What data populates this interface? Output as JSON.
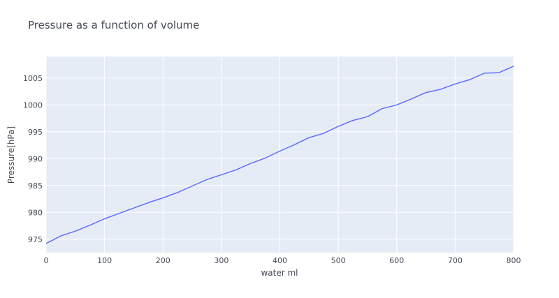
{
  "chart_data": {
    "type": "line",
    "title": "Pressure as a function of volume",
    "xlabel": "water ml",
    "ylabel": "Pressure[hPa]",
    "xlim": [
      0,
      800
    ],
    "ylim": [
      972.5,
      1009
    ],
    "grid": true,
    "x_ticks": [
      0,
      100,
      200,
      300,
      400,
      500,
      600,
      700,
      800
    ],
    "y_ticks": [
      975,
      980,
      985,
      990,
      995,
      1000,
      1005
    ],
    "series": [
      {
        "color": "#636efa",
        "x": [
          0,
          25,
          50,
          75,
          100,
          125,
          150,
          175,
          200,
          225,
          250,
          275,
          300,
          325,
          350,
          375,
          400,
          425,
          450,
          475,
          500,
          525,
          550,
          575,
          600,
          625,
          650,
          675,
          700,
          725,
          750,
          775,
          800
        ],
        "y": [
          974.2,
          975.6,
          976.5,
          977.6,
          978.8,
          979.8,
          980.8,
          981.8,
          982.7,
          983.7,
          984.9,
          986.1,
          987.0,
          987.9,
          989.1,
          990.1,
          991.4,
          992.6,
          993.9,
          994.7,
          996.0,
          997.1,
          997.8,
          999.3,
          1000.0,
          1001.1,
          1002.3,
          1002.9,
          1003.9,
          1004.7,
          1005.9,
          1006.0,
          1007.2
        ]
      }
    ]
  },
  "colors": {
    "plot_background": "#e5ecf6",
    "grid": "#ffffff",
    "line": "#636efa",
    "text": "#444a56"
  }
}
